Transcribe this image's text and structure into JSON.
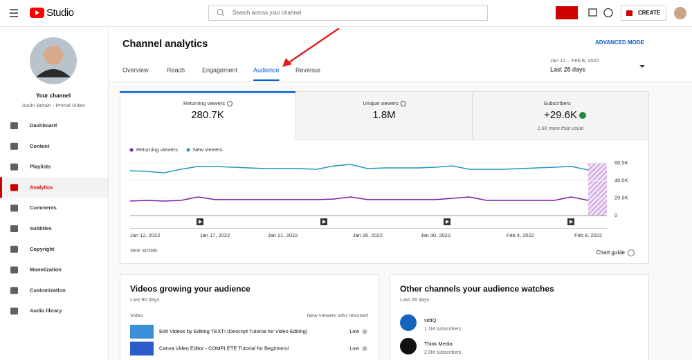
{
  "header": {
    "logo": "Studio",
    "search_placeholder": "Search across your channel",
    "create": "CREATE"
  },
  "sidebar": {
    "channel_title": "Your channel",
    "channel_name": "Justin Brown - Primal Video",
    "nav": [
      "Dashboard",
      "Content",
      "Playlists",
      "Analytics",
      "Comments",
      "Subtitles",
      "Copyright",
      "Monetization",
      "Customization",
      "Audio library"
    ]
  },
  "page": {
    "title": "Channel analytics",
    "advanced": "ADVANCED MODE",
    "tabs": [
      "Overview",
      "Reach",
      "Engagement",
      "Audience",
      "Revenue"
    ],
    "date_range": "Jan 12 – Feb 8, 2022",
    "period": "Last 28 days"
  },
  "metrics": [
    {
      "label": "Returning viewers",
      "value": "280.7K"
    },
    {
      "label": "Unique viewers",
      "value": "1.8M"
    },
    {
      "label": "Subscribers",
      "value": "+29.6K",
      "note": "1.6K more than usual"
    }
  ],
  "chart_data": {
    "type": "line",
    "categories": [
      "Jan 12, 2022",
      null,
      null,
      null,
      null,
      "Jan 17, 2022",
      null,
      null,
      null,
      "Jan 21, 2022",
      null,
      null,
      null,
      null,
      "Jan 26, 2022",
      null,
      null,
      null,
      "Jan 30, 2022",
      null,
      null,
      null,
      null,
      "Feb 4, 2022",
      null,
      null,
      null,
      "Feb 8, 2022"
    ],
    "series": [
      {
        "name": "Returning viewers",
        "color": "#7b1fa2",
        "values": [
          16600,
          17400,
          16600,
          17400,
          21300,
          18200,
          18200,
          18200,
          18200,
          18200,
          18200,
          18200,
          18900,
          21300,
          18200,
          18200,
          18200,
          18200,
          18200,
          19700,
          21300,
          17400,
          17400,
          17400,
          17400,
          17400,
          21300,
          17400
        ]
      },
      {
        "name": "New viewers",
        "color": "#2196b8",
        "values": [
          51300,
          50500,
          48900,
          52900,
          56100,
          56100,
          55300,
          54500,
          53700,
          53700,
          53700,
          52900,
          56800,
          58400,
          53700,
          54500,
          54500,
          54500,
          55300,
          56800,
          52900,
          52900,
          52900,
          53700,
          54500,
          55300,
          56100,
          52100
        ]
      }
    ],
    "ylim": [
      0,
      60000
    ],
    "yticks": [
      0,
      {
        "value": 20000,
        "label": "20.0K"
      },
      {
        "value": 40000,
        "label": "40.0K"
      },
      {
        "value": 60000,
        "label": "60.0K"
      }
    ],
    "grid": true,
    "legend": "top-left"
  },
  "chart_footer": {
    "see_more": "SEE MORE",
    "chart_guide": "Chart guide"
  },
  "cards": [
    {
      "title": "Videos growing your audience",
      "subtitle": "Last 90 days",
      "column_left": "Video",
      "column_right": "New viewers who returned",
      "rows": [
        {
          "title": "Edit Videos by Editing TEXT! (Descript Tutorial for Video Editing)",
          "value": "Low"
        },
        {
          "title": "Canva Video Editor - COMPLETE Tutorial for Beginners!",
          "value": "Low"
        }
      ]
    },
    {
      "title": "Other channels your audience watches",
      "subtitle": "Last 28 days",
      "rows": [
        {
          "name": "vidIQ",
          "subscribers": "1.1M subscribers"
        },
        {
          "name": "Think Media",
          "subscribers": "2.0M subscribers"
        }
      ]
    }
  ]
}
